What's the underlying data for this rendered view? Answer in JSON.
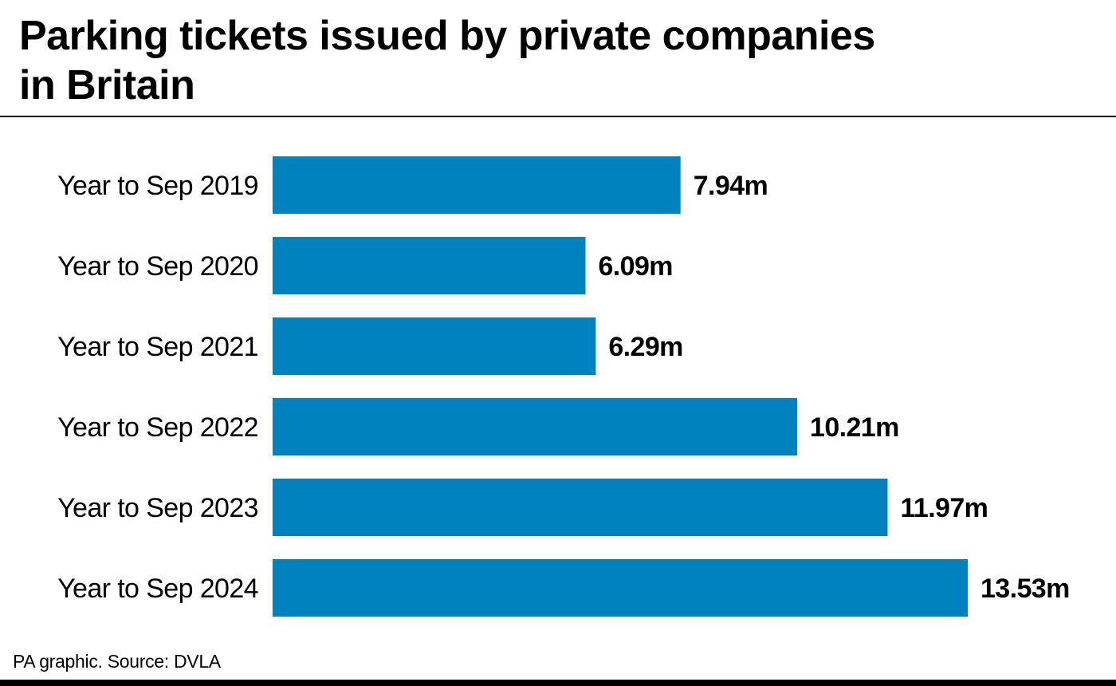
{
  "chart_data": {
    "type": "bar",
    "orientation": "horizontal",
    "title": "Parking tickets issued by private companies in Britain",
    "title_lines": [
      "Parking tickets issued by private companies",
      "in Britain"
    ],
    "categories": [
      "Year to Sep 2019",
      "Year to Sep 2020",
      "Year to Sep 2021",
      "Year to Sep 2022",
      "Year to Sep 2023",
      "Year to Sep 2024"
    ],
    "values": [
      7.94,
      6.09,
      6.29,
      10.21,
      11.97,
      13.53
    ],
    "data_labels": [
      "7.94m",
      "6.09m",
      "6.29m",
      "10.21m",
      "11.97m",
      "13.53m"
    ],
    "unit": "m",
    "xlabel": "",
    "ylabel": "",
    "grid": false,
    "bar_color": "#0082bf",
    "source": "PA graphic. Source: DVLA"
  }
}
